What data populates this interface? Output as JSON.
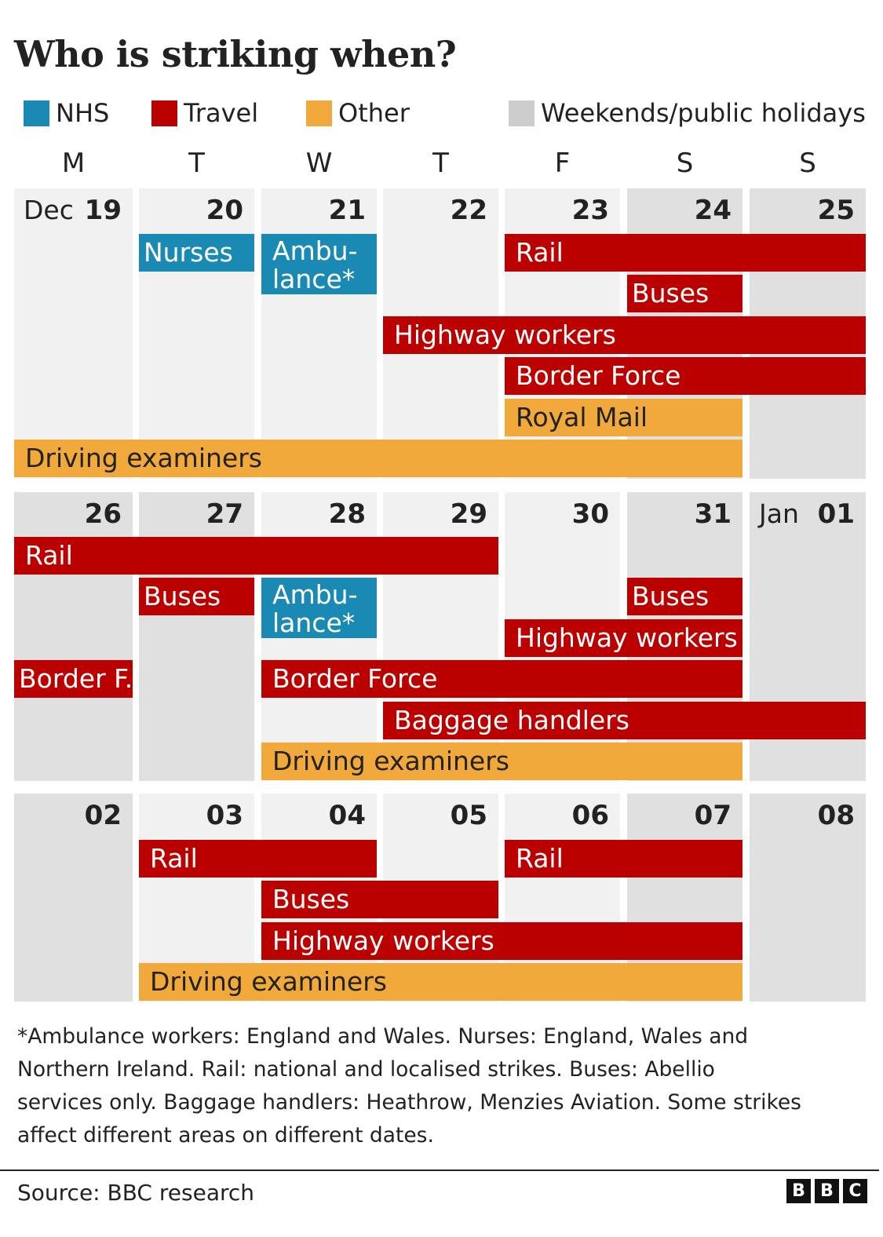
{
  "title": "Who is striking when?",
  "legend": [
    {
      "label": "NHS",
      "color": "#1a8ab4"
    },
    {
      "label": "Travel",
      "color": "#bb0000"
    },
    {
      "label": "Other",
      "color": "#f2a93b"
    },
    {
      "label": "Weekends/public holidays",
      "color": "#cccccc"
    }
  ],
  "colors": {
    "weekday": "#f1f1f1",
    "weekend": "#e0e0e0",
    "nhs": "#1a8ab4",
    "travel": "#bb0000",
    "other": "#f2a93b"
  },
  "chart_data": {
    "type": "table",
    "weekday_headers": [
      "M",
      "T",
      "W",
      "T",
      "F",
      "S",
      "S"
    ],
    "weeks": [
      {
        "days": [
          {
            "month": "Dec",
            "day": "19",
            "holiday": false
          },
          {
            "day": "20",
            "holiday": false
          },
          {
            "day": "21",
            "holiday": false
          },
          {
            "day": "22",
            "holiday": false
          },
          {
            "day": "23",
            "holiday": false
          },
          {
            "day": "24",
            "holiday": true
          },
          {
            "day": "25",
            "holiday": true
          }
        ],
        "strikes": [
          {
            "label": "Nurses",
            "category": "nhs",
            "start": 1,
            "end": 1,
            "lane": 0
          },
          {
            "label": "Ambu-\nlance*",
            "category": "nhs",
            "start": 2,
            "end": 2,
            "lane": 0,
            "span": 1.6
          },
          {
            "label": "Rail",
            "category": "travel",
            "start": 4,
            "end": 6,
            "lane": 0
          },
          {
            "label": "Buses",
            "category": "travel",
            "start": 5,
            "end": 5,
            "lane": 1
          },
          {
            "label": "Highway workers",
            "category": "travel",
            "start": 3,
            "end": 6,
            "lane": 2
          },
          {
            "label": "Border Force",
            "category": "travel",
            "start": 4,
            "end": 6,
            "lane": 3
          },
          {
            "label": "Royal Mail",
            "category": "other",
            "start": 4,
            "end": 5,
            "lane": 4
          },
          {
            "label": "Driving examiners",
            "category": "other",
            "start": 0,
            "end": 5,
            "lane": 5
          }
        ]
      },
      {
        "days": [
          {
            "day": "26",
            "holiday": true
          },
          {
            "day": "27",
            "holiday": true
          },
          {
            "day": "28",
            "holiday": false
          },
          {
            "day": "29",
            "holiday": false
          },
          {
            "day": "30",
            "holiday": false
          },
          {
            "day": "31",
            "holiday": true
          },
          {
            "month": "Jan",
            "day": "01",
            "holiday": true
          }
        ],
        "strikes": [
          {
            "label": "Rail",
            "category": "travel",
            "start": 0,
            "end": 3,
            "lane": 0
          },
          {
            "label": "Buses",
            "category": "travel",
            "start": 1,
            "end": 1,
            "lane": 1
          },
          {
            "label": "Ambu-\nlance*",
            "category": "nhs",
            "start": 2,
            "end": 2,
            "lane": 1,
            "span": 1.6
          },
          {
            "label": "Buses",
            "category": "travel",
            "start": 5,
            "end": 5,
            "lane": 1
          },
          {
            "label": "Highway workers",
            "category": "travel",
            "start": 4,
            "end": 5,
            "lane": 2
          },
          {
            "label": "Border F.",
            "category": "travel",
            "start": 0,
            "end": 0,
            "lane": 3
          },
          {
            "label": "Border Force",
            "category": "travel",
            "start": 2,
            "end": 5,
            "lane": 3
          },
          {
            "label": "Baggage handlers",
            "category": "travel",
            "start": 3,
            "end": 6,
            "lane": 4
          },
          {
            "label": "Driving examiners",
            "category": "other",
            "start": 2,
            "end": 5,
            "lane": 5
          }
        ]
      },
      {
        "days": [
          {
            "day": "02",
            "holiday": true
          },
          {
            "day": "03",
            "holiday": false
          },
          {
            "day": "04",
            "holiday": false
          },
          {
            "day": "05",
            "holiday": false
          },
          {
            "day": "06",
            "holiday": false
          },
          {
            "day": "07",
            "holiday": true
          },
          {
            "day": "08",
            "holiday": true
          }
        ],
        "strikes": [
          {
            "label": "Rail",
            "category": "travel",
            "start": 1,
            "end": 2,
            "lane": 0
          },
          {
            "label": "Rail",
            "category": "travel",
            "start": 4,
            "end": 5,
            "lane": 0
          },
          {
            "label": "Buses",
            "category": "travel",
            "start": 2,
            "end": 3,
            "lane": 1
          },
          {
            "label": "Highway workers",
            "category": "travel",
            "start": 2,
            "end": 5,
            "lane": 2
          },
          {
            "label": "Driving examiners",
            "category": "other",
            "start": 1,
            "end": 5,
            "lane": 3
          }
        ]
      }
    ]
  },
  "footnote": "*Ambulance workers: England and Wales. Nurses: England, Wales and Northern Ireland. Rail: national and localised strikes. Buses: Abellio services only. Baggage handlers: Heathrow, Menzies Aviation. Some strikes affect different areas on different dates.",
  "source": "Source: BBC research",
  "logo": [
    "B",
    "B",
    "C"
  ]
}
